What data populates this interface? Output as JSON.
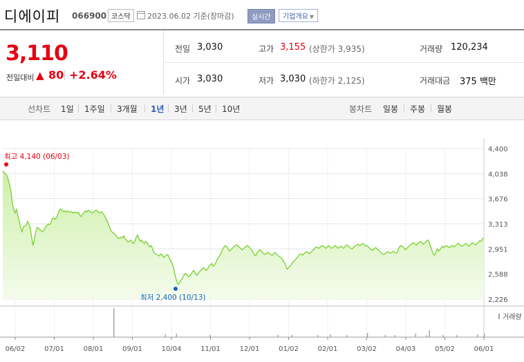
{
  "header": {
    "name": "디에이피",
    "code": "066900",
    "market": "코스닥",
    "date": "2023.06.02 기준(장마감)",
    "realtime_button": "실시간",
    "company_button": "기업개요"
  },
  "quote": {
    "price": "3,110",
    "change_label": "전일대비",
    "change_arrow": "▲",
    "change_value": "80",
    "change_percent": "+2.64%",
    "rows": [
      [
        {
          "label": "전일",
          "value": "3,030",
          "sub": ""
        },
        {
          "label": "고가",
          "value": "3,155",
          "sub": "(상한가 3,935)"
        },
        {
          "label": "거래량",
          "value": "120,234",
          "sub": ""
        }
      ],
      [
        {
          "label": "시가",
          "value": "3,030",
          "sub": ""
        },
        {
          "label": "저가",
          "value": "3,030",
          "sub": "(하한가 2,125)"
        },
        {
          "label": "거래대금",
          "value": "375 백만",
          "sub": ""
        }
      ]
    ]
  },
  "period_bar": {
    "line_label": "선차트",
    "line_periods": [
      "1일",
      "1주일",
      "3개월",
      "1년",
      "3년",
      "5년",
      "10년"
    ],
    "selected": "1년",
    "candle_label": "봉차트",
    "candle_periods": [
      "일봉",
      "주봉",
      "월봉"
    ]
  },
  "colors": {
    "up": "#e60012",
    "line": "#77d12e",
    "fill_top": "#cdf0a8",
    "low_marker": "#1565c0"
  },
  "chart_data": {
    "type": "area",
    "ylim": [
      2226,
      4400
    ],
    "yticks": [
      4400,
      4038,
      3676,
      3313,
      2951,
      2588,
      2226
    ],
    "xtick_labels": [
      "06/02",
      "07/01",
      "08/01",
      "09/01",
      "10/04",
      "11/01",
      "12/01",
      "01/02",
      "02/01",
      "03/02",
      "04/03",
      "05/02",
      "06/01"
    ],
    "high_annotation": "최고 4,140 (06/03)",
    "low_annotation": "최저 2,400 (10/13)",
    "high": 4140,
    "low": 2400,
    "volume_legend": "거래량",
    "price_points": [
      [
        0,
        4080
      ],
      [
        2,
        4050
      ],
      [
        4,
        4030
      ],
      [
        6,
        4010
      ],
      [
        8,
        3950
      ],
      [
        10,
        3880
      ],
      [
        12,
        3780
      ],
      [
        13,
        3700
      ],
      [
        14,
        3600
      ],
      [
        16,
        3520
      ],
      [
        18,
        3470
      ],
      [
        20,
        3520
      ],
      [
        22,
        3430
      ],
      [
        24,
        3350
      ],
      [
        26,
        3260
      ],
      [
        28,
        3200
      ],
      [
        30,
        3270
      ],
      [
        32,
        3280
      ],
      [
        34,
        3290
      ],
      [
        36,
        3350
      ],
      [
        38,
        3310
      ],
      [
        40,
        3250
      ],
      [
        42,
        3120
      ],
      [
        44,
        3000
      ],
      [
        46,
        3080
      ],
      [
        48,
        3200
      ],
      [
        50,
        3260
      ],
      [
        52,
        3250
      ],
      [
        54,
        3230
      ],
      [
        56,
        3210
      ],
      [
        58,
        3200
      ],
      [
        60,
        3220
      ],
      [
        62,
        3260
      ],
      [
        64,
        3290
      ],
      [
        66,
        3310
      ],
      [
        68,
        3300
      ],
      [
        70,
        3330
      ],
      [
        72,
        3390
      ],
      [
        74,
        3400
      ],
      [
        76,
        3380
      ],
      [
        78,
        3400
      ],
      [
        80,
        3450
      ],
      [
        82,
        3500
      ],
      [
        84,
        3530
      ],
      [
        86,
        3510
      ],
      [
        88,
        3490
      ],
      [
        90,
        3500
      ],
      [
        92,
        3480
      ],
      [
        94,
        3500
      ],
      [
        96,
        3490
      ],
      [
        98,
        3480
      ],
      [
        100,
        3490
      ],
      [
        102,
        3470
      ],
      [
        104,
        3480
      ],
      [
        106,
        3480
      ],
      [
        108,
        3470
      ],
      [
        110,
        3480
      ],
      [
        112,
        3440
      ],
      [
        114,
        3420
      ],
      [
        116,
        3450
      ],
      [
        118,
        3470
      ],
      [
        120,
        3500
      ],
      [
        122,
        3480
      ],
      [
        124,
        3510
      ],
      [
        126,
        3500
      ],
      [
        128,
        3490
      ],
      [
        130,
        3470
      ],
      [
        132,
        3480
      ],
      [
        134,
        3500
      ],
      [
        136,
        3510
      ],
      [
        138,
        3500
      ],
      [
        140,
        3470
      ],
      [
        142,
        3480
      ],
      [
        144,
        3490
      ],
      [
        146,
        3460
      ],
      [
        148,
        3430
      ],
      [
        150,
        3390
      ],
      [
        152,
        3350
      ],
      [
        154,
        3300
      ],
      [
        156,
        3250
      ],
      [
        158,
        3200
      ],
      [
        160,
        3190
      ],
      [
        162,
        3170
      ],
      [
        164,
        3150
      ],
      [
        166,
        3130
      ],
      [
        168,
        3100
      ],
      [
        170,
        3110
      ],
      [
        172,
        3120
      ],
      [
        174,
        3110
      ],
      [
        176,
        3140
      ],
      [
        178,
        3100
      ],
      [
        180,
        3080
      ],
      [
        182,
        3050
      ],
      [
        184,
        3060
      ],
      [
        186,
        3080
      ],
      [
        188,
        3050
      ],
      [
        190,
        3030
      ],
      [
        192,
        3060
      ],
      [
        194,
        3120
      ],
      [
        196,
        3150
      ],
      [
        198,
        3100
      ],
      [
        200,
        3060
      ],
      [
        202,
        3080
      ],
      [
        204,
        3050
      ],
      [
        206,
        3030
      ],
      [
        208,
        3060
      ],
      [
        210,
        3040
      ],
      [
        212,
        3000
      ],
      [
        214,
        2980
      ],
      [
        216,
        3000
      ],
      [
        218,
        2950
      ],
      [
        220,
        2900
      ],
      [
        222,
        2880
      ],
      [
        224,
        2870
      ],
      [
        226,
        2860
      ],
      [
        228,
        2850
      ],
      [
        230,
        2880
      ],
      [
        232,
        2860
      ],
      [
        234,
        2830
      ],
      [
        236,
        2840
      ],
      [
        238,
        2860
      ],
      [
        240,
        2870
      ],
      [
        242,
        2830
      ],
      [
        244,
        2780
      ],
      [
        246,
        2750
      ],
      [
        248,
        2700
      ],
      [
        250,
        2600
      ],
      [
        252,
        2520
      ],
      [
        254,
        2460
      ],
      [
        256,
        2440
      ],
      [
        258,
        2480
      ],
      [
        260,
        2510
      ],
      [
        262,
        2540
      ],
      [
        264,
        2580
      ],
      [
        266,
        2600
      ],
      [
        268,
        2570
      ],
      [
        270,
        2550
      ],
      [
        272,
        2560
      ],
      [
        274,
        2590
      ],
      [
        276,
        2620
      ],
      [
        278,
        2640
      ],
      [
        280,
        2600
      ],
      [
        282,
        2570
      ],
      [
        284,
        2590
      ],
      [
        286,
        2620
      ],
      [
        288,
        2640
      ],
      [
        290,
        2660
      ],
      [
        292,
        2680
      ],
      [
        294,
        2660
      ],
      [
        296,
        2640
      ],
      [
        298,
        2660
      ],
      [
        300,
        2700
      ],
      [
        302,
        2720
      ],
      [
        304,
        2740
      ],
      [
        306,
        2700
      ],
      [
        308,
        2720
      ],
      [
        310,
        2750
      ],
      [
        312,
        2800
      ],
      [
        314,
        2830
      ],
      [
        316,
        2860
      ],
      [
        318,
        2900
      ],
      [
        320,
        2950
      ],
      [
        322,
        2980
      ],
      [
        324,
        3000
      ],
      [
        326,
        2980
      ],
      [
        328,
        2950
      ],
      [
        330,
        2920
      ],
      [
        332,
        2940
      ],
      [
        334,
        2960
      ],
      [
        336,
        2980
      ],
      [
        338,
        3000
      ],
      [
        340,
        3010
      ],
      [
        342,
        3000
      ],
      [
        344,
        2980
      ],
      [
        346,
        2960
      ],
      [
        348,
        2940
      ],
      [
        350,
        2950
      ],
      [
        352,
        2970
      ],
      [
        354,
        2990
      ],
      [
        356,
        3000
      ],
      [
        358,
        2980
      ],
      [
        360,
        2960
      ],
      [
        362,
        2940
      ],
      [
        364,
        2900
      ],
      [
        366,
        2870
      ],
      [
        368,
        2850
      ],
      [
        370,
        2900
      ],
      [
        372,
        2920
      ],
      [
        374,
        2940
      ],
      [
        376,
        2920
      ],
      [
        378,
        2900
      ],
      [
        380,
        2880
      ],
      [
        382,
        2870
      ],
      [
        384,
        2890
      ],
      [
        386,
        2900
      ],
      [
        388,
        2880
      ],
      [
        390,
        2870
      ],
      [
        392,
        2860
      ],
      [
        394,
        2880
      ],
      [
        396,
        2900
      ],
      [
        398,
        2880
      ],
      [
        400,
        2860
      ],
      [
        402,
        2840
      ],
      [
        404,
        2830
      ],
      [
        406,
        2810
      ],
      [
        408,
        2780
      ],
      [
        410,
        2750
      ],
      [
        412,
        2700
      ],
      [
        414,
        2660
      ],
      [
        416,
        2680
      ],
      [
        418,
        2700
      ],
      [
        420,
        2730
      ],
      [
        422,
        2760
      ],
      [
        424,
        2780
      ],
      [
        426,
        2800
      ],
      [
        428,
        2820
      ],
      [
        430,
        2850
      ],
      [
        432,
        2870
      ],
      [
        434,
        2880
      ],
      [
        436,
        2860
      ],
      [
        438,
        2880
      ],
      [
        440,
        2900
      ],
      [
        442,
        2910
      ],
      [
        444,
        2900
      ],
      [
        446,
        2880
      ],
      [
        448,
        2900
      ],
      [
        450,
        2920
      ],
      [
        452,
        2940
      ],
      [
        454,
        2960
      ],
      [
        456,
        2980
      ],
      [
        458,
        2970
      ],
      [
        460,
        2960
      ],
      [
        462,
        2980
      ],
      [
        464,
        3000
      ],
      [
        466,
        2990
      ],
      [
        468,
        2980
      ],
      [
        470,
        2960
      ],
      [
        472,
        2980
      ],
      [
        474,
        3000
      ],
      [
        476,
        2980
      ],
      [
        478,
        2960
      ],
      [
        480,
        2970
      ],
      [
        482,
        2990
      ],
      [
        484,
        3000
      ],
      [
        486,
        2980
      ],
      [
        488,
        2960
      ],
      [
        490,
        2980
      ],
      [
        492,
        2990
      ],
      [
        494,
        2970
      ],
      [
        496,
        2960
      ],
      [
        498,
        2990
      ],
      [
        500,
        3010
      ],
      [
        502,
        3000
      ],
      [
        504,
        2980
      ],
      [
        506,
        2960
      ],
      [
        508,
        2950
      ],
      [
        510,
        2970
      ],
      [
        512,
        2990
      ],
      [
        514,
        3000
      ],
      [
        516,
        3020
      ],
      [
        518,
        3010
      ],
      [
        520,
        3000
      ],
      [
        522,
        3020
      ],
      [
        524,
        3030
      ],
      [
        526,
        3010
      ],
      [
        528,
        2990
      ],
      [
        530,
        3000
      ],
      [
        532,
        2980
      ],
      [
        534,
        2960
      ],
      [
        536,
        2940
      ],
      [
        538,
        2930
      ],
      [
        540,
        2950
      ],
      [
        542,
        2970
      ],
      [
        544,
        2960
      ],
      [
        546,
        2940
      ],
      [
        548,
        2920
      ],
      [
        550,
        2900
      ],
      [
        552,
        2880
      ],
      [
        554,
        2870
      ],
      [
        556,
        2880
      ],
      [
        558,
        2900
      ],
      [
        560,
        2910
      ],
      [
        562,
        2900
      ],
      [
        564,
        2890
      ],
      [
        566,
        2900
      ],
      [
        568,
        2920
      ],
      [
        570,
        2900
      ],
      [
        572,
        2890
      ],
      [
        574,
        2900
      ],
      [
        576,
        2960
      ],
      [
        578,
        2990
      ],
      [
        580,
        3000
      ],
      [
        582,
        2980
      ],
      [
        584,
        2960
      ],
      [
        586,
        2940
      ],
      [
        588,
        2960
      ],
      [
        590,
        2980
      ],
      [
        592,
        3000
      ],
      [
        594,
        3020
      ],
      [
        596,
        3030
      ],
      [
        598,
        3040
      ],
      [
        600,
        3020
      ],
      [
        602,
        3010
      ],
      [
        604,
        3030
      ],
      [
        606,
        3050
      ],
      [
        608,
        3060
      ],
      [
        610,
        3040
      ],
      [
        612,
        3020
      ],
      [
        614,
        3040
      ],
      [
        616,
        3060
      ],
      [
        618,
        3080
      ],
      [
        620,
        3060
      ],
      [
        622,
        3000
      ],
      [
        624,
        2940
      ],
      [
        626,
        2880
      ],
      [
        628,
        2860
      ],
      [
        630,
        2900
      ],
      [
        632,
        2950
      ],
      [
        634,
        2920
      ],
      [
        636,
        2940
      ],
      [
        638,
        2970
      ],
      [
        640,
        2990
      ],
      [
        642,
        2970
      ],
      [
        644,
        2990
      ],
      [
        646,
        3000
      ],
      [
        648,
        2980
      ],
      [
        650,
        2970
      ],
      [
        652,
        2990
      ],
      [
        654,
        3000
      ],
      [
        656,
        2980
      ],
      [
        658,
        2990
      ],
      [
        660,
        3010
      ],
      [
        662,
        3030
      ],
      [
        664,
        3020
      ],
      [
        666,
        3000
      ],
      [
        668,
        2990
      ],
      [
        670,
        3000
      ],
      [
        672,
        3020
      ],
      [
        674,
        3030
      ],
      [
        676,
        3010
      ],
      [
        678,
        2990
      ],
      [
        680,
        3010
      ],
      [
        682,
        3030
      ],
      [
        684,
        3040
      ],
      [
        686,
        3020
      ],
      [
        688,
        3010
      ],
      [
        690,
        3030
      ],
      [
        692,
        3050
      ],
      [
        694,
        3070
      ],
      [
        696,
        3060
      ],
      [
        698,
        3100
      ],
      [
        700,
        3110
      ]
    ],
    "volume_spikes": [
      [
        161,
        42
      ],
      [
        236,
        4
      ],
      [
        252,
        5
      ],
      [
        301,
        3
      ],
      [
        400,
        3
      ],
      [
        420,
        3
      ],
      [
        458,
        3
      ],
      [
        476,
        4
      ],
      [
        500,
        3
      ],
      [
        530,
        6
      ],
      [
        556,
        3
      ],
      [
        570,
        3
      ],
      [
        600,
        5
      ],
      [
        616,
        3
      ],
      [
        620,
        10
      ],
      [
        640,
        3
      ],
      [
        660,
        3
      ],
      [
        690,
        4
      ],
      [
        700,
        5
      ]
    ]
  }
}
